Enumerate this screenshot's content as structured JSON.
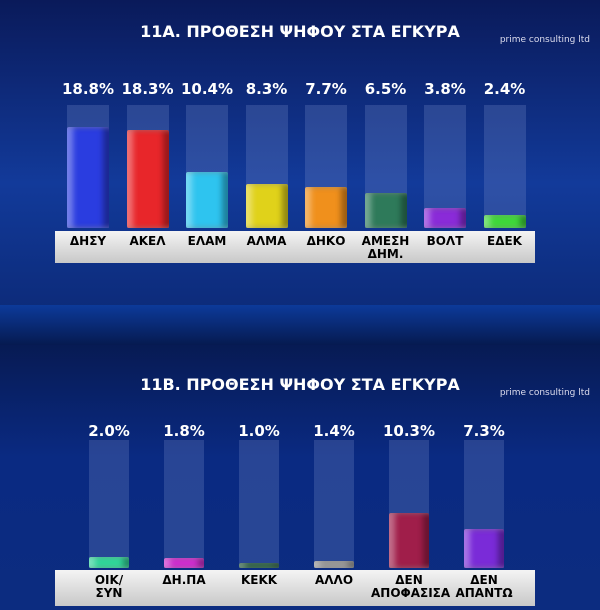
{
  "chart_data": [
    {
      "type": "bar",
      "title": "11Α. ΠΡΟΘΕΣΗ ΨΗΦΟΥ ΣΤΑ ΕΓΚΥΡΑ",
      "annotation": "prime consulting ltd",
      "categories": [
        "ΔΗΣΥ",
        "ΑΚΕΛ",
        "ΕΛΑΜ",
        "ΑΛΜΑ",
        "ΔΗΚΟ",
        "ΑΜΕΣΗ\nΔΗΜ.",
        "ΒΟΛΤ",
        "ΕΔΕΚ"
      ],
      "values": [
        18.8,
        18.3,
        10.4,
        8.3,
        7.7,
        6.5,
        3.8,
        2.4
      ],
      "value_labels": [
        "18.8%",
        "18.3%",
        "10.4%",
        "8.3%",
        "7.7%",
        "6.5%",
        "3.8%",
        "2.4%"
      ],
      "colors": [
        "#2a3de0",
        "#e8262a",
        "#2ec4ef",
        "#e0d21a",
        "#f0901c",
        "#2e7a5a",
        "#8a2bd8",
        "#3fd83a"
      ]
    },
    {
      "type": "bar",
      "title": "11Β. ΠΡΟΘΕΣΗ ΨΗΦΟΥ ΣΤΑ ΕΓΚΥΡΑ",
      "annotation": "prime consulting ltd",
      "categories": [
        "ΟΙΚ/\nΣΥΝ",
        "ΔΗ.ΠΑ",
        "ΚΕΚΚ",
        "ΑΛΛΟ",
        "ΔΕΝ\nΑΠΟΦΑΣΙΣΑ",
        "ΔΕΝ\nΑΠΑΝΤΩ"
      ],
      "values": [
        2.0,
        1.8,
        1.0,
        1.4,
        10.3,
        7.3
      ],
      "value_labels": [
        "2.0%",
        "1.8%",
        "1.0%",
        "1.4%",
        "10.3%",
        "7.3%"
      ],
      "colors": [
        "#2ed89a",
        "#d02ad0",
        "#1e5a3a",
        "#9a9a9a",
        "#a01e4a",
        "#7a2bd8"
      ]
    }
  ]
}
